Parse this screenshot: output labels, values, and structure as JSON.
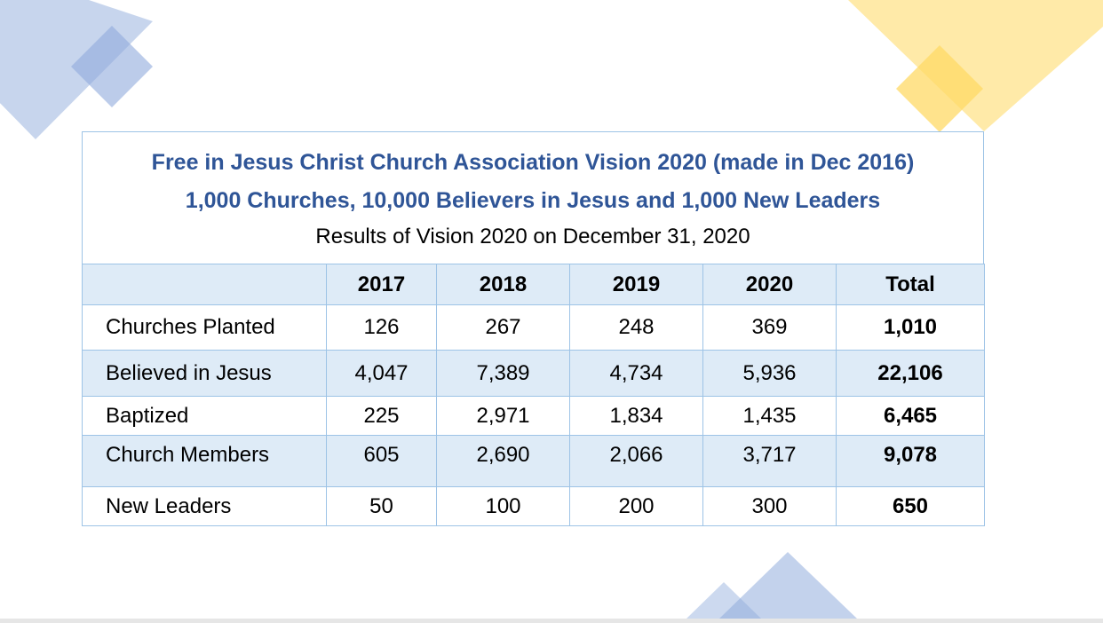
{
  "heading": {
    "line1": "Free in Jesus Christ Church Association Vision 2020 (made in Dec 2016)",
    "line2": "1,000 Churches, 10,000 Believers in Jesus and 1,000 New Leaders",
    "line3": "Results of Vision 2020 on December 31, 2020"
  },
  "table": {
    "columns": [
      "",
      "2017",
      "2018",
      "2019",
      "2020",
      "Total"
    ],
    "rows": [
      {
        "label": "Churches Planted",
        "values": [
          "126",
          "267",
          "248",
          "369"
        ],
        "total": "1,010"
      },
      {
        "label": "Believed in Jesus",
        "values": [
          "4,047",
          "7,389",
          "4,734",
          "5,936"
        ],
        "total": "22,106"
      },
      {
        "label": "Baptized",
        "values": [
          "225",
          "2,971",
          "1,834",
          "1,435"
        ],
        "total": "6,465"
      },
      {
        "label": "Church Members",
        "values": [
          "605",
          "2,690",
          "2,066",
          "3,717"
        ],
        "total": "9,078"
      },
      {
        "label": "New Leaders",
        "values": [
          "50",
          "100",
          "200",
          "300"
        ],
        "total": "650"
      }
    ]
  },
  "colors": {
    "title_blue": "#2f5597",
    "border_blue": "#9dc3e6",
    "shade_blue": "#deebf7",
    "deco_blue": "#b4c7e7",
    "deco_yellow": "#ffe699"
  }
}
